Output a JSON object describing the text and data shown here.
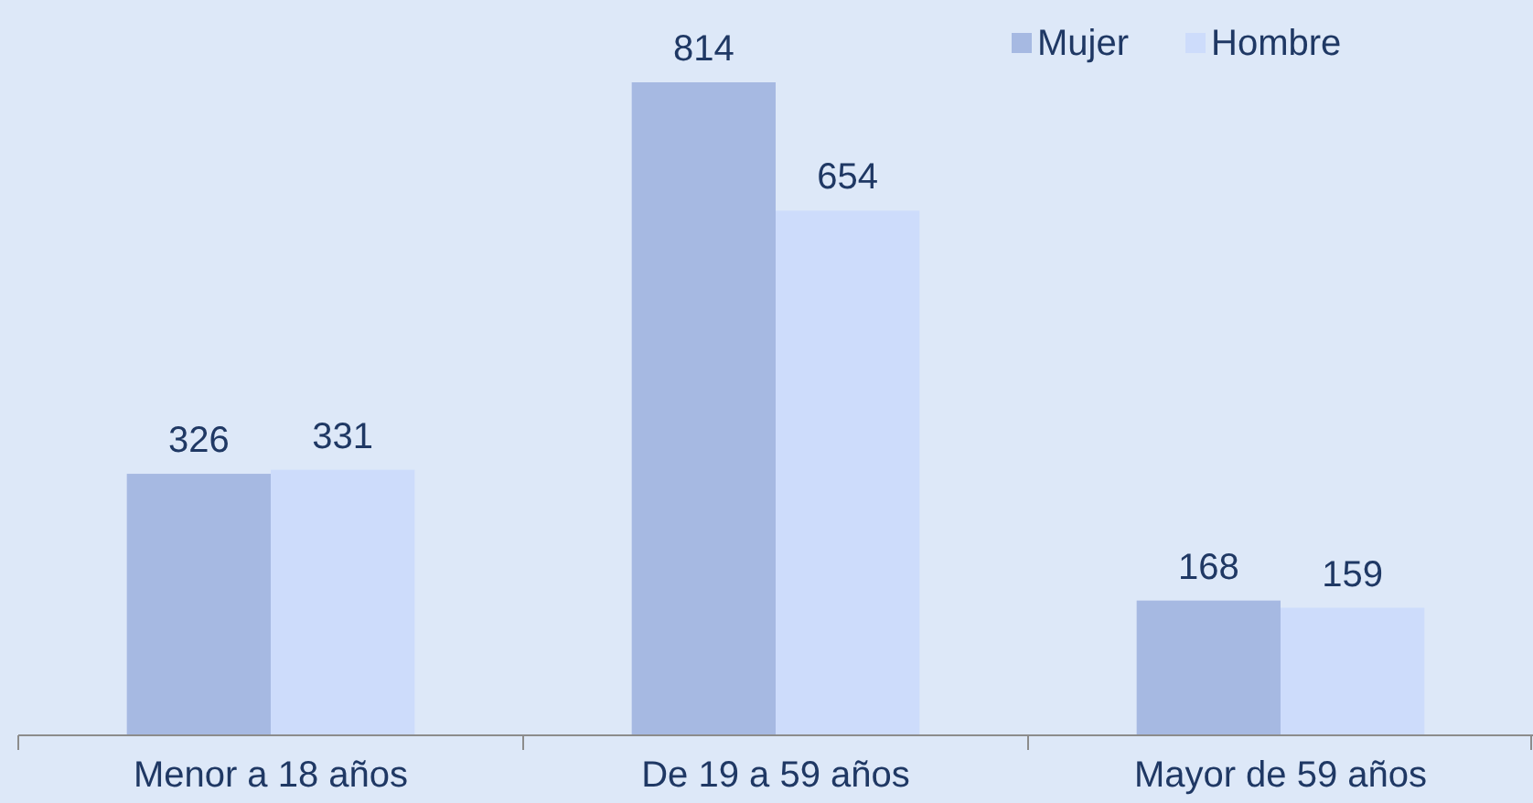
{
  "chart_data": {
    "type": "bar",
    "categories": [
      "Menor a 18 años",
      "De 19 a 59 años",
      "Mayor de 59 años"
    ],
    "series": [
      {
        "name": "Mujer",
        "color": "#a6b9e2",
        "values": [
          326,
          814,
          168
        ]
      },
      {
        "name": "Hombre",
        "color": "#cddcfb",
        "values": [
          331,
          654,
          159
        ]
      }
    ],
    "data_labels": true,
    "legend": "top right"
  }
}
